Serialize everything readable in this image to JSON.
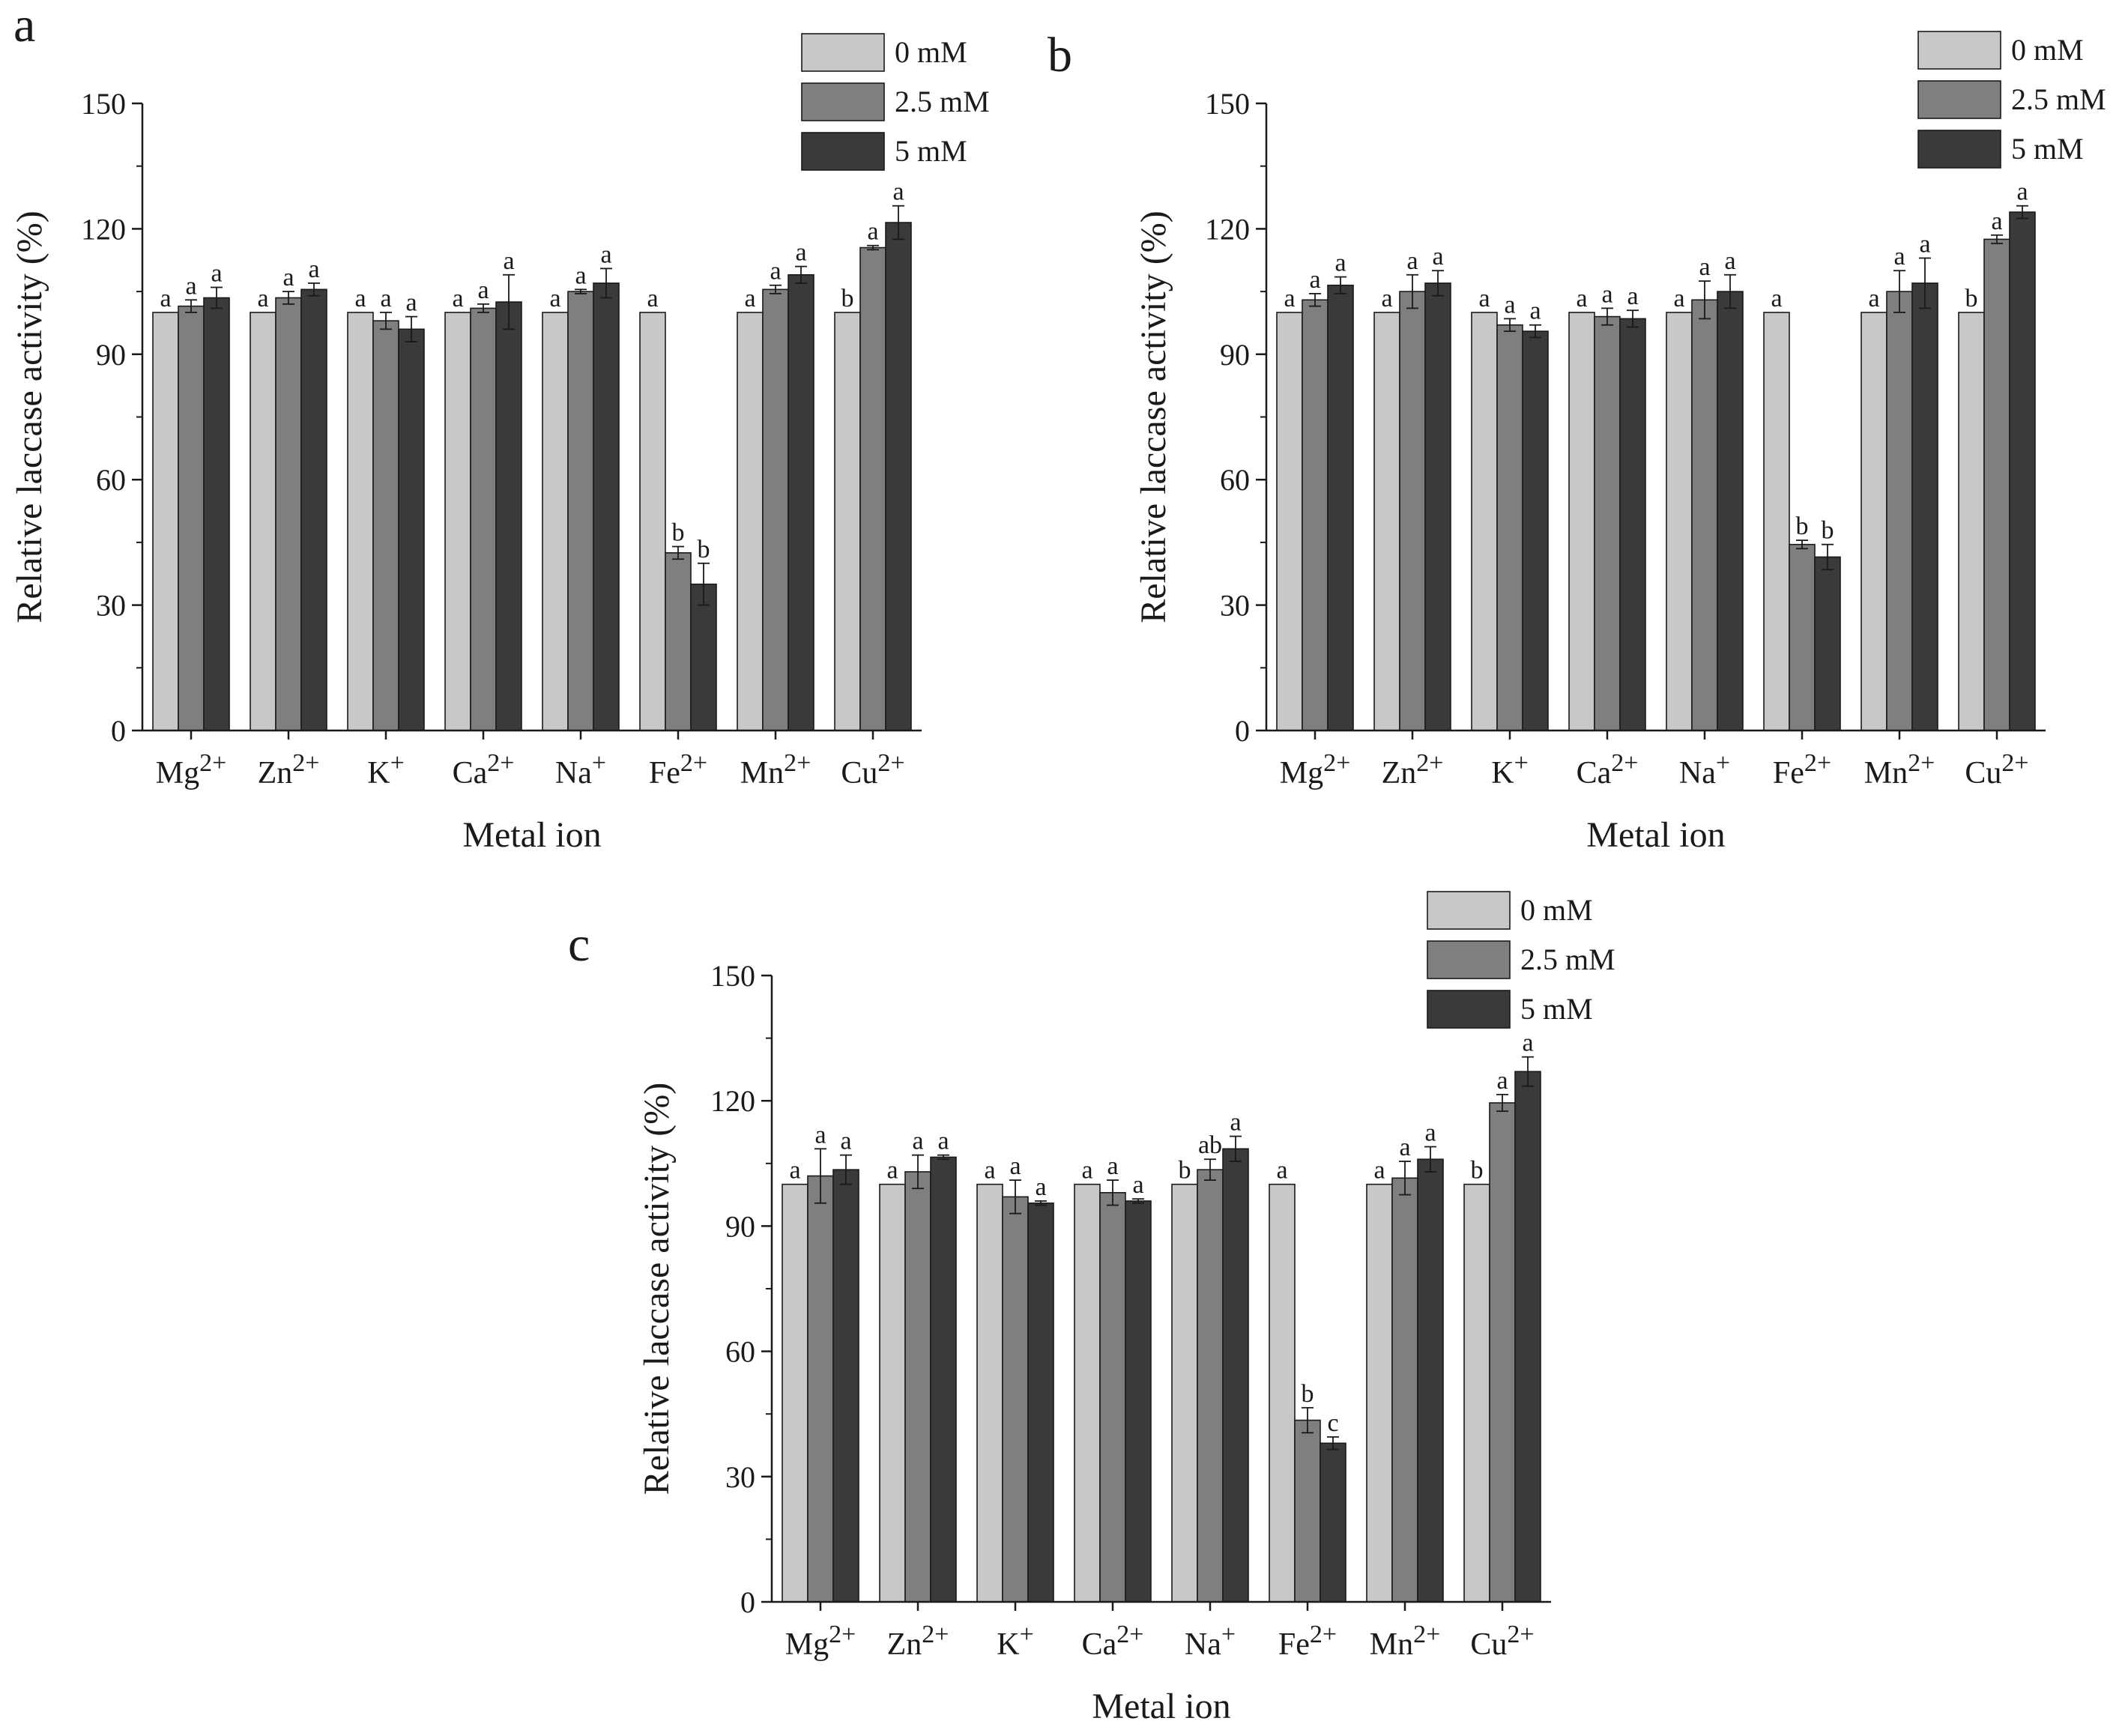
{
  "figure": {
    "series_colors": {
      "0 mM": "#c8c8c8",
      "2.5 mM": "#7f7f7f",
      "5 mM": "#3a3a3a"
    },
    "axis_color": "#1a1a1a"
  },
  "chart_data": [
    {
      "type": "bar",
      "panel_label": "a",
      "categories": [
        "Mg",
        "Zn",
        "K",
        "Ca",
        "Na",
        "Fe",
        "Mn",
        "Cu"
      ],
      "category_sups": [
        "2+",
        "2+",
        "+",
        "2+",
        "+",
        "2+",
        "2+",
        "2+"
      ],
      "xlabel": "Metal ion",
      "ylabel": "Relative laccase activity (%)",
      "ylim": [
        0,
        150
      ],
      "yticks": [
        0,
        30,
        60,
        90,
        120,
        150
      ],
      "legend_position": "top-right",
      "series": [
        {
          "name": "0 mM",
          "values": [
            100,
            100,
            100,
            100,
            100,
            100,
            100,
            100
          ],
          "errors": [
            0,
            0,
            0,
            0,
            0,
            0,
            0,
            0
          ],
          "letters": [
            "a",
            "a",
            "a",
            "a",
            "a",
            "a",
            "a",
            "b"
          ]
        },
        {
          "name": "2.5 mM",
          "values": [
            101.5,
            103.5,
            98,
            101,
            105,
            42.5,
            105.5,
            115.5
          ],
          "errors": [
            1.5,
            1.5,
            2,
            1,
            0.5,
            1.5,
            1,
            0.5
          ],
          "letters": [
            "a",
            "a",
            "a",
            "a",
            "a",
            "b",
            "a",
            "a"
          ]
        },
        {
          "name": "5 mM",
          "values": [
            103.5,
            105.5,
            96,
            102.5,
            107,
            35,
            109,
            121.5
          ],
          "errors": [
            2.5,
            1.5,
            3,
            6.5,
            3.5,
            5,
            2,
            4
          ],
          "letters": [
            "a",
            "a",
            "a",
            "a",
            "a",
            "b",
            "a",
            "a"
          ]
        }
      ]
    },
    {
      "type": "bar",
      "panel_label": "b",
      "categories": [
        "Mg",
        "Zn",
        "K",
        "Ca",
        "Na",
        "Fe",
        "Mn",
        "Cu"
      ],
      "category_sups": [
        "2+",
        "2+",
        "+",
        "2+",
        "+",
        "2+",
        "2+",
        "2+"
      ],
      "xlabel": "Metal ion",
      "ylabel": "Relative laccase activity (%)",
      "ylim": [
        0,
        150
      ],
      "yticks": [
        0,
        30,
        60,
        90,
        120,
        150
      ],
      "legend_position": "top-right",
      "series": [
        {
          "name": "0 mM",
          "values": [
            100,
            100,
            100,
            100,
            100,
            100,
            100,
            100
          ],
          "errors": [
            0,
            0,
            0,
            0,
            0,
            0,
            0,
            0
          ],
          "letters": [
            "a",
            "a",
            "a",
            "a",
            "a",
            "a",
            "a",
            "b"
          ]
        },
        {
          "name": "2.5 mM",
          "values": [
            103,
            105,
            97,
            99,
            103,
            44.5,
            105,
            117.5
          ],
          "errors": [
            1.5,
            4,
            1.5,
            2,
            4.5,
            1,
            5,
            1
          ],
          "letters": [
            "a",
            "a",
            "a",
            "a",
            "a",
            "b",
            "a",
            "a"
          ]
        },
        {
          "name": "5 mM",
          "values": [
            106.5,
            107,
            95.5,
            98.5,
            105,
            41.5,
            107,
            124
          ],
          "errors": [
            2,
            3,
            1.5,
            2,
            4,
            3,
            6,
            1.5
          ],
          "letters": [
            "a",
            "a",
            "a",
            "a",
            "a",
            "b",
            "a",
            "a"
          ]
        }
      ]
    },
    {
      "type": "bar",
      "panel_label": "c",
      "categories": [
        "Mg",
        "Zn",
        "K",
        "Ca",
        "Na",
        "Fe",
        "Mn",
        "Cu"
      ],
      "category_sups": [
        "2+",
        "2+",
        "+",
        "2+",
        "+",
        "2+",
        "2+",
        "2+"
      ],
      "xlabel": "Metal ion",
      "ylabel": "Relative laccase activity (%)",
      "ylim": [
        0,
        150
      ],
      "yticks": [
        0,
        30,
        60,
        90,
        120,
        150
      ],
      "legend_position": "top-right",
      "series": [
        {
          "name": "0 mM",
          "values": [
            100,
            100,
            100,
            100,
            100,
            100,
            100,
            100
          ],
          "errors": [
            0,
            0,
            0,
            0,
            0,
            0,
            0,
            0
          ],
          "letters": [
            "a",
            "a",
            "a",
            "a",
            "b",
            "a",
            "a",
            "b"
          ]
        },
        {
          "name": "2.5 mM",
          "values": [
            102,
            103,
            97,
            98,
            103.5,
            43.5,
            101.5,
            119.5
          ],
          "errors": [
            6.5,
            4,
            4,
            3,
            2.5,
            3,
            4,
            2
          ],
          "letters": [
            "a",
            "a",
            "a",
            "a",
            "ab",
            "b",
            "a",
            "a"
          ]
        },
        {
          "name": "5 mM",
          "values": [
            103.5,
            106.5,
            95.5,
            96,
            108.5,
            38,
            106,
            127
          ],
          "errors": [
            3.5,
            0.5,
            0.5,
            0.5,
            3,
            1.5,
            3,
            3.5
          ],
          "letters": [
            "a",
            "a",
            "a",
            "a",
            "a",
            "c",
            "a",
            "a"
          ]
        }
      ]
    }
  ]
}
